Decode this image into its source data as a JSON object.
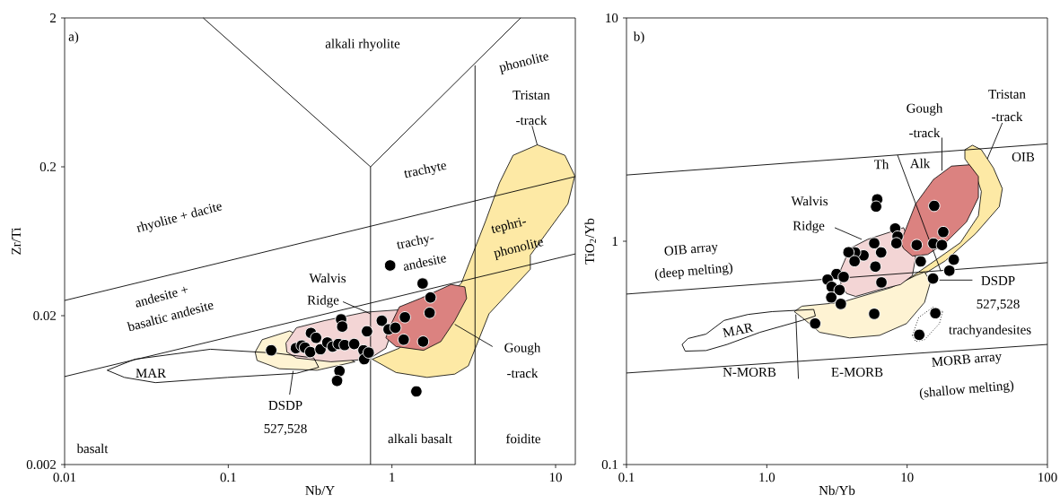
{
  "chart_data": [
    {
      "type": "scatter",
      "xlabel": "Nb/Y",
      "ylabel": "Zr/Ti",
      "log": "xy",
      "xlim": [
        0.01,
        13.2
      ],
      "ylim": [
        0.002,
        2
      ],
      "xticks": [
        0.01,
        0.1,
        1,
        10
      ],
      "yticks": [
        0.002,
        0.02,
        0.2,
        2
      ],
      "series": [
        {
          "type": "area",
          "color": "#fde9a5",
          "x": [
            7.73,
            11.4,
            13.1,
            11.9,
            7.01,
            7.01,
            3.92,
            2.93,
            2.42,
            1.64,
            1.06,
            0.757,
            1.11,
            null,
            2.66,
            3.74,
            4.54,
            5.5
          ],
          "values": [
            0.281,
            0.239,
            0.174,
            0.113,
            0.051,
            0.041,
            0.0206,
            0.0092,
            0.0081,
            0.0077,
            0.0083,
            0.0102,
            0.0121,
            null,
            0.0332,
            0.0868,
            0.156,
            0.239
          ]
        },
        {
          "type": "area",
          "color": "#fef3d3",
          "x": [
            0.161,
            0.237,
            null,
            0.594,
            0.349,
            0.205,
            0.15,
            0.146
          ],
          "values": [
            0.0138,
            0.0158,
            null,
            0.0098,
            0.0086,
            0.0088,
            0.01,
            0.0114
          ]
        },
        {
          "type": "area",
          "color": "#f3d5d5",
          "x": [
            0.225,
            0.261,
            0.385,
            0.687,
            1.11,
            null,
            null,
            0.918,
            0.721,
            0.424,
            0.261,
            0.228
          ],
          "values": [
            0.0131,
            0.0166,
            0.0185,
            0.0211,
            0.0219,
            null,
            null,
            0.0121,
            0.0102,
            0.0098,
            0.0104,
            0.0114
          ]
        },
        {
          "type": "area",
          "color": "#db8280",
          "x": [
            0.964,
            1.11,
            1.49,
            2.3,
            2.79,
            2.86,
            2.42,
            1.99,
            1.56,
            1.06,
            0.918
          ],
          "values": [
            0.0166,
            0.0229,
            0.0261,
            0.0324,
            0.0312,
            0.0261,
            0.0185,
            0.0134,
            0.0117,
            0.0124,
            0.0142
          ]
        },
        {
          "type": "line",
          "color": "#000000",
          "x": [
            0.0182,
            0.0269,
            0.0778,
            0.195,
            0.333,
            0.357
          ],
          "values": [
            0.0086,
            0.0102,
            0.0119,
            0.0112,
            0.0104,
            0.009
          ]
        },
        {
          "type": "line",
          "color": "#010101",
          "x": [
            0.0182,
            0.0232,
            0.0359,
            0.0991,
            0.261,
            0.357
          ],
          "values": [
            0.0086,
            0.0077,
            0.0071,
            0.0077,
            0.0082,
            0.009
          ]
        },
        {
          "type": "line",
          "color": "#020202",
          "x": [
            0.0703,
            0.74
          ],
          "values": [
            2,
            0.2
          ]
        },
        {
          "type": "line",
          "color": "#030303",
          "x": [
            0.74,
            6.12
          ],
          "values": [
            0.2,
            2
          ]
        },
        {
          "type": "line",
          "color": "#040404",
          "x": [
            0.74,
            0.74
          ],
          "values": [
            0.2,
            0.002
          ]
        },
        {
          "type": "line",
          "color": "#050505",
          "x": [
            3.22,
            3.22
          ],
          "values": [
            0.96,
            0.002
          ]
        },
        {
          "type": "line",
          "color": "#060606",
          "x": [
            0.01,
            13.2
          ],
          "values": [
            0.0253,
            0.172
          ]
        },
        {
          "type": "line",
          "color": "#070707",
          "x": [
            0.01,
            13.2
          ],
          "values": [
            0.0078,
            0.052
          ]
        },
        {
          "type": "line",
          "color": "#080808",
          "x": [
            0.502,
            0.738
          ],
          "values": [
            0.0248,
            0.0206
          ]
        },
        {
          "type": "line",
          "color": "#090909",
          "x": [
            0.249,
            0.237
          ],
          "values": [
            0.0085,
            0.0059
          ]
        },
        {
          "type": "line",
          "color": "#0a0a0a",
          "x": [
            2.42,
            4.12
          ],
          "values": [
            0.0175,
            0.0124
          ]
        },
        {
          "type": "line",
          "color": "#0b0b0b",
          "x": [
            7.18,
            7.73
          ],
          "values": [
            0.377,
            0.28
          ]
        },
        {
          "marker": "circle",
          "color": "#000000",
          "x": [
            0.183,
            0.259,
            0.281,
            0.294,
            0.317,
            0.32,
            0.344,
            0.366,
            0.403,
            0.434,
            0.471,
            0.489,
            0.497,
            0.514,
            0.588,
            0.704,
            0.67,
            0.677,
            0.721,
            0.867,
            0.954,
            1.05,
            1.2,
            1.18,
            1.55,
            1.72,
            1.7,
            1.54,
            0.478,
            0.462,
            1.41,
            0.975
          ],
          "values": [
            0.0117,
            0.0121,
            0.0126,
            0.0122,
            0.0114,
            0.0153,
            0.0142,
            0.0119,
            0.0132,
            0.0124,
            0.0129,
            0.0189,
            0.0169,
            0.0127,
            0.0129,
            0.0157,
            0.0117,
            0.0102,
            0.0113,
            0.0185,
            0.0162,
            0.0166,
            0.0195,
            0.0138,
            0.0134,
            0.0265,
            0.0209,
            0.0329,
            0.0085,
            0.0073,
            0.0062,
            0.0435
          ]
        }
      ],
      "annotations": [
        "a)",
        "alkali rhyolite",
        "phonolite",
        "Tristan",
        "-track",
        "trachyte",
        "rhyolite + dacite",
        "tephri-",
        "phonolite",
        "trachy-",
        "andesite",
        "andesite +",
        "basaltic andesite",
        "Walvis",
        "Ridge",
        "MAR",
        "Gough",
        "-track",
        "DSDP",
        "527,528",
        "basalt",
        "alkali basalt",
        "foidite"
      ]
    },
    {
      "type": "scatter",
      "xlabel": "Nb/Yb",
      "ylabel": "TiO$_{2}$/Yb",
      "log": "xy",
      "xlim": [
        0.1,
        100
      ],
      "ylim": [
        0.1,
        10
      ],
      "xticks": [
        0.1,
        {
          "value": 1,
          "label": "1.0"
        },
        10,
        100
      ],
      "yticks": [
        0.1,
        1,
        10
      ],
      "series": [
        {
          "type": "area",
          "color": "#fde9a5",
          "x": [
            25.8,
            29.2,
            33.8,
            41.2,
            47.7,
            45.4,
            30.7,
            18.8,
            12.7,
            8.98,
            14.7,
            24.0,
            32.2,
            33.8,
            30.7,
            25.8
          ],
          "values": [
            2.57,
            2.69,
            2.57,
            2.13,
            1.72,
            1.43,
            1.08,
            0.819,
            0.702,
            0.64,
            0.794,
            0.986,
            1.3,
            1.67,
            2.01,
            2.34
          ]
        },
        {
          "type": "area",
          "color": "#fef3d3",
          "x": [
            1.57,
            1.78,
            3.37,
            7.75,
            11.5,
            13.3,
            14.7,
            13.3,
            9.91,
            6.37,
            3.9,
            2.38,
            1.78
          ],
          "values": [
            0.484,
            0.512,
            0.532,
            0.621,
            0.702,
            0.728,
            0.66,
            0.532,
            0.428,
            0.379,
            0.369,
            0.391,
            0.456
          ]
        },
        {
          "type": "area",
          "color": "#f3d5d5",
          "x": [
            3.37,
            3.9,
            5.24,
            9.44,
            null,
            11.5,
            10.9,
            8.98,
            6.07,
            4.3,
            3.71,
            3.37
          ],
          "values": [
            0.747,
            0.927,
            1.02,
            1.15,
            null,
            0.845,
            0.702,
            0.64,
            0.602,
            0.566,
            0.583,
            0.64
          ]
        },
        {
          "type": "area",
          "color": "#db8280",
          "x": [
            8.98,
            11.5,
            15.4,
            20.7,
            27.8,
            32.2,
            32.2,
            26.5,
            18.8,
            14.0,
            10.9,
            9.44
          ],
          "values": [
            0.986,
            1.47,
            1.89,
            2.17,
            2.2,
            1.95,
            1.57,
            1.22,
            0.986,
            0.872,
            0.859,
            0.927
          ]
        },
        {
          "type": "line",
          "color": "#000000",
          "x": [
            0.249,
            0.275,
            0.369,
            0.496,
            0.734,
            1.09,
            2.16,
            2.22
          ],
          "values": [
            0.345,
            0.367,
            0.384,
            0.442,
            0.47,
            0.484,
            0.495,
            0.463
          ]
        },
        {
          "type": "line",
          "color": "#010101",
          "x": [
            0.249,
            0.262,
            0.369,
            0.521,
            0.894,
            1.78,
            2.22
          ],
          "values": [
            0.345,
            0.322,
            0.324,
            0.345,
            0.391,
            0.442,
            0.463
          ]
        },
        {
          "type": "line",
          "color": "#020202",
          "line_style": "dotted",
          "x": [
            10.9,
            12.1,
            15.4,
            17.9
          ],
          "values": [
            0.379,
            0.456,
            0.508,
            0.484
          ]
        },
        {
          "type": "line",
          "color": "#030303",
          "line_style": "dotted",
          "x": [
            10.9,
            11.5,
            13.3,
            17.0,
            17.9
          ],
          "values": [
            0.379,
            0.356,
            0.362,
            0.428,
            0.484
          ]
        },
        {
          "type": "line",
          "color": "#040404",
          "x": [
            0.1,
            100
          ],
          "values": [
            1.98,
            2.73
          ]
        },
        {
          "type": "line",
          "color": "#050505",
          "x": [
            0.1,
            100
          ],
          "values": [
            0.58,
            0.802
          ]
        },
        {
          "type": "line",
          "color": "#060606",
          "x": [
            0.1,
            100
          ],
          "values": [
            0.257,
            0.345
          ]
        },
        {
          "type": "line",
          "color": "#070707",
          "x": [
            8.55,
            17.4
          ],
          "values": [
            2.43,
            0.735
          ]
        },
        {
          "type": "line",
          "color": "#080808",
          "x": [
            17.7,
            17.7
          ],
          "values": [
            2.91,
            2.07
          ]
        },
        {
          "type": "line",
          "color": "#090909",
          "x": [
            47.7,
            37.3
          ],
          "values": [
            3.39,
            2.34
          ]
        },
        {
          "type": "line",
          "color": "#0a0a0a",
          "x": [
            3.05,
            4.74
          ],
          "values": [
            1.15,
            1.02
          ]
        },
        {
          "type": "line",
          "color": "#0b0b0b",
          "x": [
            17.0,
            29.2
          ],
          "values": [
            0.67,
            0.67
          ]
        },
        {
          "type": "line",
          "color": "#0c0c0c",
          "x": [
            1.61,
            1.68
          ],
          "values": [
            0.47,
            0.242
          ]
        },
        {
          "marker": "circle",
          "color": "#000000",
          "x": [
            6.12,
            6.01,
            15.6,
            8.22,
            8.55,
            8.39,
            18.1,
            11.7,
            15.4,
            17.7,
            5.83,
            6.53,
            4.89,
            4.26,
            3.82,
            4.22,
            5.94,
            12.5,
            21.5,
            20.0,
            15.3,
            6.56,
            3.14,
            3.53,
            2.71,
            2.9,
            3.3,
            2.88,
            3.37,
            5.83,
            2.21,
            15.9,
            12.2
          ],
          "values": [
            1.54,
            1.43,
            1.44,
            1.14,
            1.05,
            0.98,
            1.1,
            0.962,
            0.977,
            0.962,
            0.98,
            0.891,
            0.864,
            0.891,
            0.893,
            0.814,
            0.77,
            0.812,
            0.827,
            0.738,
            0.681,
            0.654,
            0.713,
            0.692,
            0.673,
            0.625,
            0.605,
            0.56,
            0.524,
            0.473,
            0.428,
            0.476,
            0.381
          ]
        }
      ],
      "annotations": [
        "b)",
        "Gough",
        "-track",
        "Tristan",
        "-track",
        "OIB",
        "Th",
        "Alk",
        "Walvis",
        "Ridge",
        "OIB array",
        "(deep melting)",
        "DSDP",
        "527,528",
        "MAR",
        "trachyandesites",
        "N-MORB",
        "E-MORB",
        "MORB array",
        "(shallow melting)"
      ]
    }
  ]
}
